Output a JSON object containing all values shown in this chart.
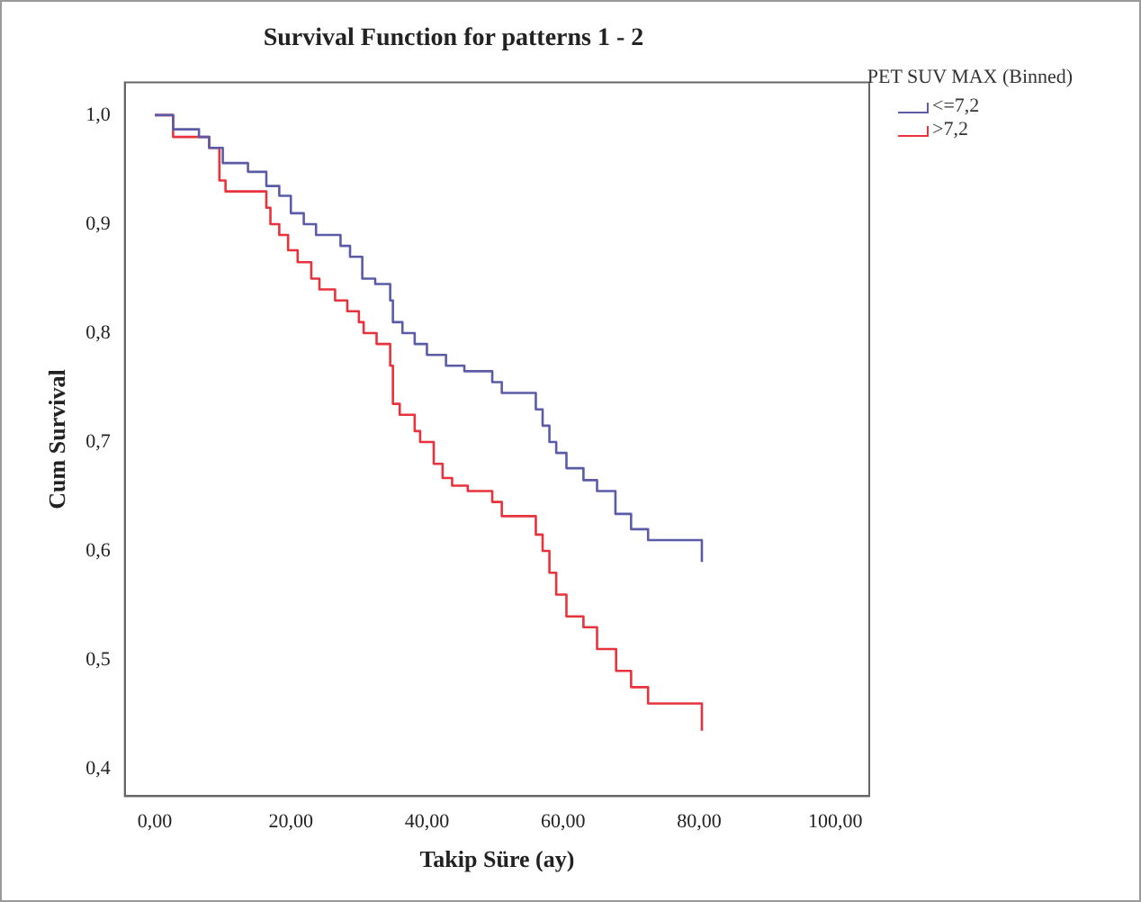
{
  "chart_data": {
    "type": "step",
    "title": "Survival Function for patterns 1 - 2",
    "xlabel": "Takip Süre (ay)",
    "ylabel": "Cum Survival",
    "legend_title": "PET SUV MAX (Binned)",
    "legend": "top right",
    "grid": false,
    "marker": "none",
    "xlim": [
      -4.4,
      105
    ],
    "xticks": [
      {
        "value": 0,
        "label": "0,00"
      },
      {
        "value": 20,
        "label": "20,00"
      },
      {
        "value": 40,
        "label": "40,00"
      },
      {
        "value": 60,
        "label": "60,00"
      },
      {
        "value": 80,
        "label": "80,00"
      },
      {
        "value": 100,
        "label": "100,00"
      }
    ],
    "ylim": [
      0.375,
      1.03
    ],
    "yticks": [
      {
        "value": 0.4,
        "label": "0,4"
      },
      {
        "value": 0.5,
        "label": "0,5"
      },
      {
        "value": 0.6,
        "label": "0,6"
      },
      {
        "value": 0.7,
        "label": "0,7"
      },
      {
        "value": 0.8,
        "label": "0,8"
      },
      {
        "value": 0.9,
        "label": "0,9"
      },
      {
        "value": 1,
        "label": "1,0"
      }
    ],
    "series": [
      {
        "name": "<=7,2",
        "color": "#5b5ba8",
        "x": [
          0,
          2.7,
          6.5,
          8,
          10,
          13.7,
          16.4,
          18.3,
          20,
          21.9,
          23.7,
          27.3,
          28.7,
          30.5,
          32.4,
          34.6,
          35,
          36.4,
          38.2,
          40,
          42.8,
          45.5,
          49.6,
          51,
          56,
          57,
          58,
          59,
          60.5,
          63,
          65,
          67.7,
          70,
          72.5,
          80.3,
          80.4
        ],
        "values": [
          1,
          0.987,
          0.98,
          0.97,
          0.956,
          0.948,
          0.935,
          0.926,
          0.91,
          0.9,
          0.89,
          0.88,
          0.87,
          0.85,
          0.845,
          0.83,
          0.81,
          0.8,
          0.79,
          0.78,
          0.77,
          0.765,
          0.755,
          0.745,
          0.73,
          0.715,
          0.7,
          0.69,
          0.676,
          0.665,
          0.655,
          0.634,
          0.62,
          0.61,
          0.61,
          0.59
        ]
      },
      {
        "name": ">7,2",
        "color": "#e8333c",
        "x": [
          0,
          2.7,
          8,
          9.5,
          10.4,
          16.4,
          17,
          18.3,
          19.6,
          21,
          23,
          24.2,
          26.5,
          28.3,
          30,
          30.7,
          32.6,
          34.6,
          35,
          36,
          38.2,
          39,
          41,
          42.3,
          43.7,
          46,
          49.6,
          51,
          56,
          57,
          58,
          59,
          60.5,
          63,
          65,
          67.8,
          70,
          72.5,
          80.3,
          80.4
        ],
        "values": [
          1,
          0.98,
          0.97,
          0.94,
          0.93,
          0.915,
          0.9,
          0.89,
          0.876,
          0.865,
          0.85,
          0.84,
          0.83,
          0.82,
          0.81,
          0.8,
          0.79,
          0.77,
          0.735,
          0.725,
          0.71,
          0.7,
          0.68,
          0.667,
          0.66,
          0.655,
          0.645,
          0.632,
          0.615,
          0.6,
          0.58,
          0.56,
          0.54,
          0.53,
          0.51,
          0.49,
          0.475,
          0.46,
          0.46,
          0.435
        ]
      }
    ]
  }
}
